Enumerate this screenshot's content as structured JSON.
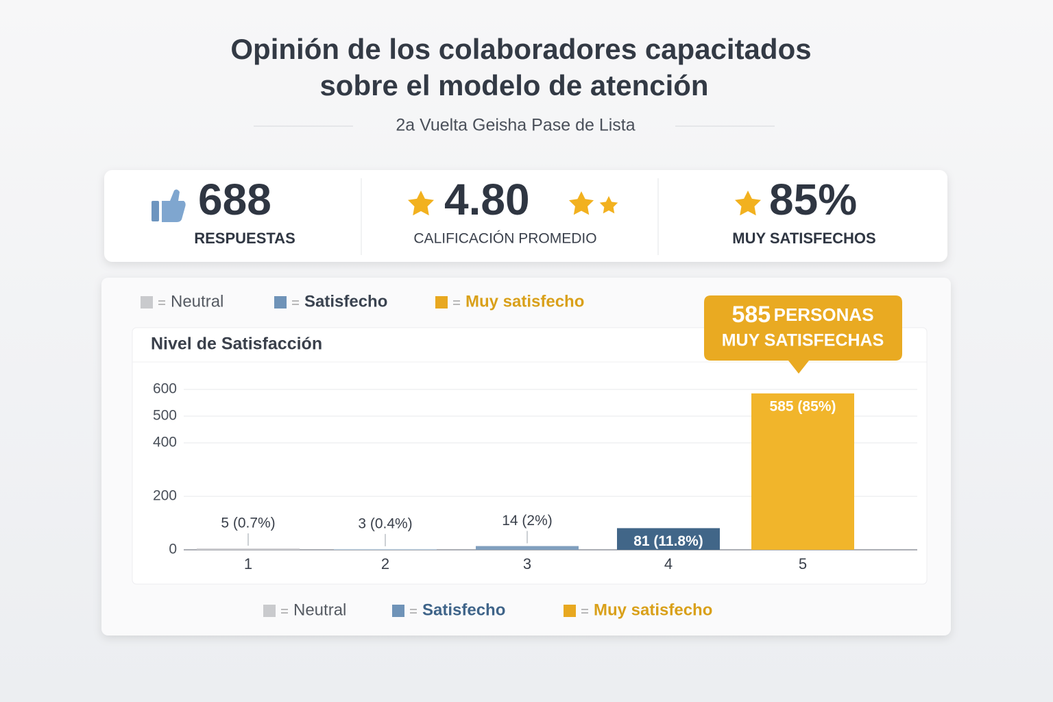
{
  "header": {
    "title": [
      "Opinión de los colaboradores capacitados",
      "sobre el modelo de atención"
    ],
    "subtitle": "2a Vuelta Geisha Pase de Lista"
  },
  "stats": [
    {
      "value": "688",
      "label": "RESPUESTAS"
    },
    {
      "value": "4.80",
      "label": "CALIFICACIÓN PROMEDIO"
    },
    {
      "value": "85%",
      "label": "MUY SATISFECHOS"
    }
  ],
  "chart_data": {
    "type": "bar",
    "title": "Nivel de Satisfacción",
    "categories": [
      "1",
      "2",
      "3",
      "4",
      "5"
    ],
    "values": [
      5,
      3,
      14,
      81,
      585
    ],
    "value_labels": [
      "5 (0.7%)",
      "3 (0.4%)",
      "14 (2%)",
      "81 (11.8%)",
      "585 (85%)"
    ],
    "colors": [
      "#cbccd0",
      "#bcd0e3",
      "#809fbe",
      "#416688",
      "#f1b52b"
    ],
    "ylim": [
      0,
      600
    ],
    "yticks": [
      0,
      200,
      400,
      500,
      600
    ],
    "grid": true,
    "legend": [
      {
        "name": "Neutral",
        "color": "#c9cacd"
      },
      {
        "name": "Satisfecho",
        "color": "#6f93b8"
      },
      {
        "name": "Muy satisfecho",
        "color": "#e8a820"
      }
    ],
    "annotation": {
      "value": 585,
      "text": [
        "PERSONAS",
        "MUY SATISFECHAS"
      ]
    }
  }
}
